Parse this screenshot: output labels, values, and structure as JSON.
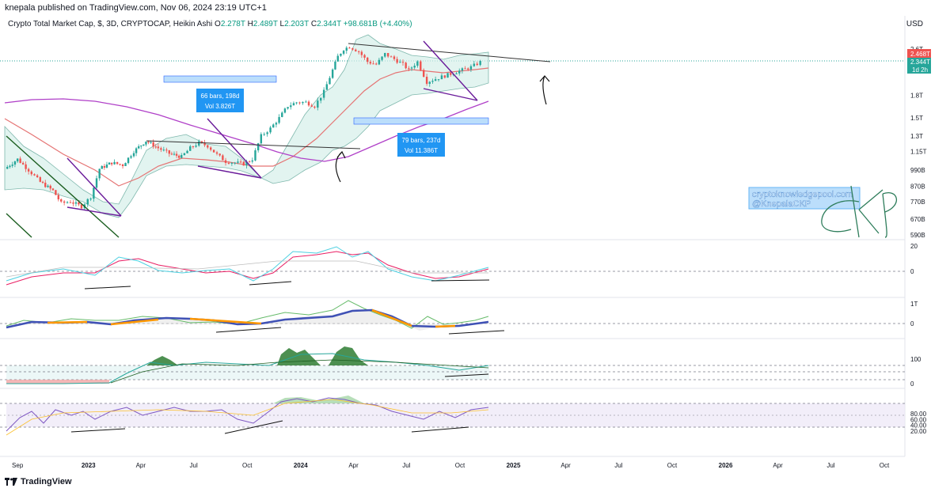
{
  "header": {
    "published": "knepala published on TradingView.com, Nov 06, 2024 23:19 UTC+1"
  },
  "symbol_line": {
    "title": "Crypto Total Market Cap, $, 3D, CRYPTOCAP, Heikin Ashi",
    "o_label": "O",
    "o_value": "2.278T",
    "h_label": "H",
    "h_value": "2.489T",
    "l_label": "L",
    "l_value": "2.203T",
    "c_label": "C",
    "c_value": "2.344T",
    "change": "+98.681B (+4.40%)"
  },
  "currency": "USD",
  "footer": {
    "logo": "TradingView"
  },
  "watermark": {
    "line1": "cryptoknowledgepool.com",
    "line2": "@KnepalaCKP",
    "signature": "CKP"
  },
  "annotations": {
    "range1_bars": "66 bars, 198d",
    "range1_vol": "Vol 3.826T",
    "range2_bars": "79 bars, 237d",
    "range2_vol": "Vol 11.386T"
  },
  "price_tags": {
    "red": "2.468T",
    "current": "2.344T",
    "countdown": "1d 2h"
  },
  "colors": {
    "bull": "#26a69a",
    "bear": "#ef5350",
    "bb_fill": "#d6efe9",
    "ma_red": "#e57373",
    "ma_purple": "#b040c8",
    "trend_purple": "#6a1b9a",
    "box_blue": "#2962ff",
    "box_fill": "#bbdefb",
    "label_blue": "#2196f3"
  },
  "chart_data": [
    {
      "type": "line",
      "title": "Crypto Total Market Cap, $, 3D, CRYPTOCAP, Heikin Ashi",
      "chart_style": "heikin-ashi candles",
      "log_scale": true,
      "y_ticks": [
        "2.6T",
        "1.8T",
        "1.5T",
        "1.3T",
        "1.15T",
        "990B",
        "870B",
        "770B",
        "670B",
        "590B"
      ],
      "y_tick_values": [
        2600,
        1800,
        1500,
        1300,
        1150,
        990,
        870,
        770,
        670,
        590
      ],
      "x_ticks": [
        "Sep",
        "2023",
        "Apr",
        "Jul",
        "Oct",
        "2024",
        "Apr",
        "Jul",
        "Oct",
        "2025",
        "Apr",
        "Jul",
        "Oct",
        "2026",
        "Apr",
        "Jul",
        "Oct"
      ],
      "x_tick_dates": [
        "2022-09-01",
        "2023-01-01",
        "2023-04-01",
        "2023-07-01",
        "2023-10-01",
        "2024-01-01",
        "2024-04-01",
        "2024-07-01",
        "2024-10-01",
        "2025-01-01",
        "2025-04-01",
        "2025-07-01",
        "2025-10-01",
        "2026-01-01",
        "2026-04-01",
        "2026-07-01",
        "2026-10-01"
      ],
      "series": [
        {
          "name": "",
          "x": [
            "2022-08-10",
            "2022-09-01",
            "2022-09-20",
            "2022-10-10",
            "2022-11-01",
            "2022-11-15",
            "2022-12-01",
            "2022-12-20",
            "2023-01-05",
            "2023-01-20",
            "2023-02-10",
            "2023-03-01",
            "2023-03-20",
            "2023-04-10",
            "2023-05-01",
            "2023-05-20",
            "2023-06-10",
            "2023-06-25",
            "2023-07-10",
            "2023-07-25",
            "2023-08-10",
            "2023-08-25",
            "2023-09-10",
            "2023-09-25",
            "2023-10-10",
            "2023-10-25",
            "2023-11-10",
            "2023-11-25",
            "2023-12-10",
            "2023-12-25",
            "2024-01-10",
            "2024-01-25",
            "2024-02-10",
            "2024-02-25",
            "2024-03-05",
            "2024-03-15",
            "2024-03-25",
            "2024-04-10",
            "2024-04-25",
            "2024-05-10",
            "2024-05-25",
            "2024-06-10",
            "2024-06-25",
            "2024-07-05",
            "2024-07-20",
            "2024-08-05",
            "2024-08-20",
            "2024-09-05",
            "2024-09-20",
            "2024-10-05",
            "2024-10-20",
            "2024-11-05"
          ],
          "values": [
            1000,
            1080,
            990,
            900,
            840,
            760,
            770,
            740,
            800,
            1000,
            1050,
            1030,
            1150,
            1250,
            1180,
            1130,
            1100,
            1180,
            1230,
            1200,
            1120,
            1060,
            1050,
            1040,
            1080,
            1300,
            1380,
            1500,
            1650,
            1700,
            1700,
            1650,
            1850,
            2200,
            2450,
            2600,
            2650,
            2550,
            2350,
            2300,
            2500,
            2400,
            2300,
            2200,
            2350,
            2000,
            2050,
            2100,
            2150,
            2200,
            2250,
            2344
          ]
        }
      ]
    },
    {
      "type": "line",
      "title": "",
      "y_ticks": [
        "20",
        "0"
      ],
      "y_tick_values": [
        20,
        0
      ]
    },
    {
      "type": "line",
      "title": "",
      "y_ticks": [
        "1T",
        "0"
      ],
      "y_tick_values": [
        1000,
        0
      ]
    },
    {
      "type": "area",
      "title": "",
      "y_ticks": [
        "100",
        "0"
      ],
      "y_tick_values": [
        100,
        0
      ]
    },
    {
      "type": "line",
      "title": "",
      "y_ticks": [
        "80.00",
        "60.00",
        "40.00",
        "20.00"
      ],
      "y_tick_values": [
        80,
        60,
        40,
        20
      ]
    }
  ]
}
